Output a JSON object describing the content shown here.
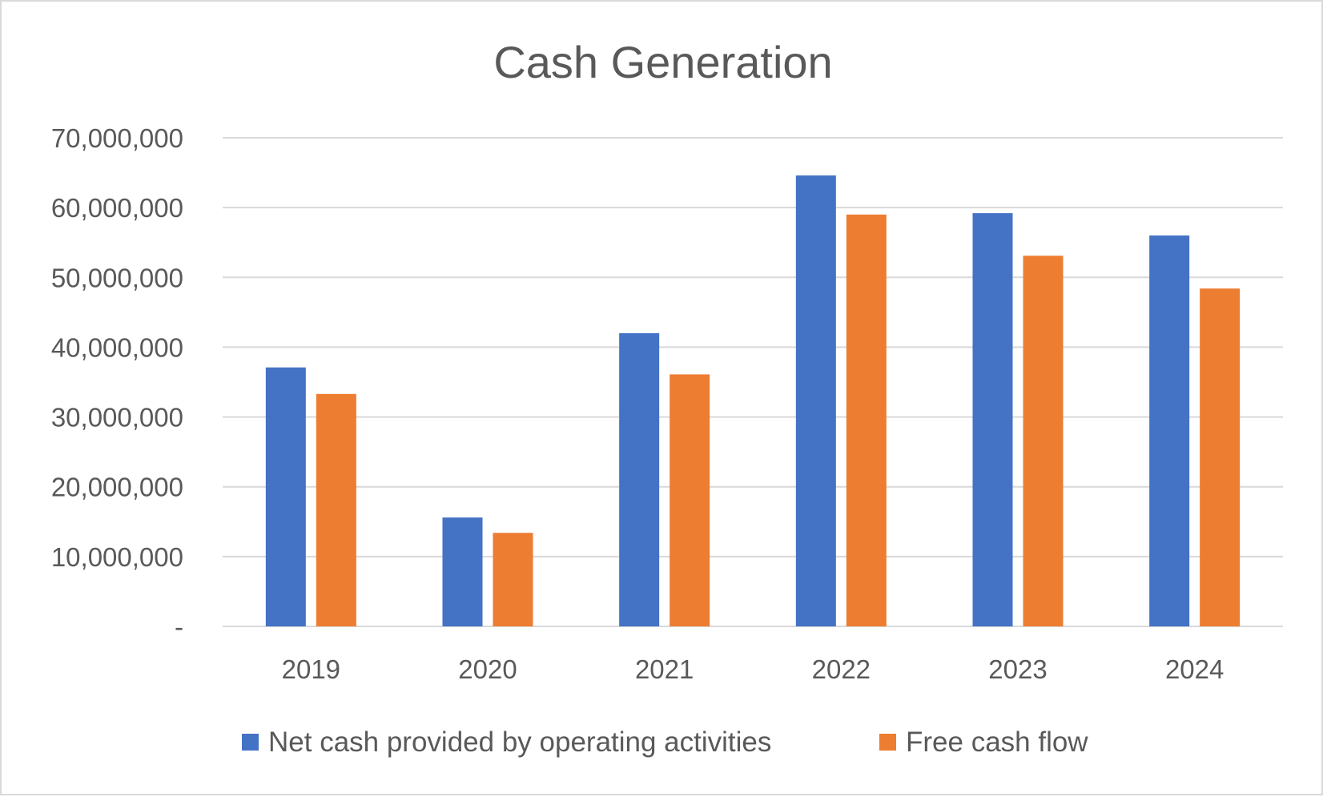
{
  "colors": {
    "series_0": "#4472c4",
    "series_1": "#ed7d31",
    "gridline": "#d9d9d9",
    "text": "#595959",
    "background": "#ffffff"
  },
  "chart_data": {
    "type": "bar",
    "title": "Cash Generation",
    "xlabel": "",
    "ylabel": "",
    "categories": [
      "2019",
      "2020",
      "2021",
      "2022",
      "2023",
      "2024"
    ],
    "series": [
      {
        "name": "Net cash provided by operating activities",
        "values": [
          37100000,
          15600000,
          42000000,
          64600000,
          59200000,
          56000000
        ]
      },
      {
        "name": "Free cash flow",
        "values": [
          33300000,
          13400000,
          36100000,
          59000000,
          53100000,
          48400000
        ]
      }
    ],
    "ylim": [
      0,
      70000000
    ],
    "yticks": [
      0,
      10000000,
      20000000,
      30000000,
      40000000,
      50000000,
      60000000,
      70000000
    ],
    "ytick_labels": [
      "-",
      "10,000,000",
      "20,000,000",
      "30,000,000",
      "40,000,000",
      "50,000,000",
      "60,000,000",
      "70,000,000"
    ],
    "grid": true,
    "legend_position": "bottom"
  }
}
